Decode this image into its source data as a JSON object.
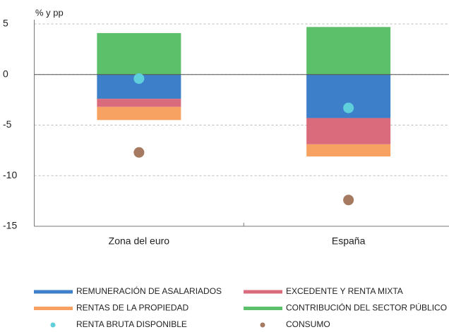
{
  "chart_data": {
    "type": "stacked_bar",
    "y_unit": "% y pp",
    "categories": [
      "Zona del euro",
      "España"
    ],
    "series": [
      {
        "name": "REMUNERACIÓN DE ASALARIADOS",
        "color": "#3d7fc9",
        "values": [
          -2.4,
          -4.3
        ]
      },
      {
        "name": "EXCEDENTE Y RENTA MIXTA",
        "color": "#d96b7c",
        "values": [
          -0.8,
          -2.6
        ]
      },
      {
        "name": "RENTAS DE LA PROPIEDAD",
        "color": "#f7a262",
        "values": [
          -1.3,
          -1.2
        ]
      },
      {
        "name": "CONTRIBUCIÓN DEL SECTOR PÚBLICO (c",
        "color": "#5cbf6a",
        "values": [
          4.1,
          4.7
        ]
      }
    ],
    "points": [
      {
        "name": "RENTA BRUTA DISPONIBLE",
        "color": "#5fcfdc",
        "values": [
          -0.4,
          -3.3
        ]
      },
      {
        "name": "CONSUMO",
        "color": "#a57a60",
        "values": [
          -7.7,
          -12.4
        ]
      }
    ],
    "ylim": [
      -15,
      5
    ],
    "yticks": [
      -15,
      -10,
      -5,
      0,
      5
    ],
    "grid": true
  }
}
